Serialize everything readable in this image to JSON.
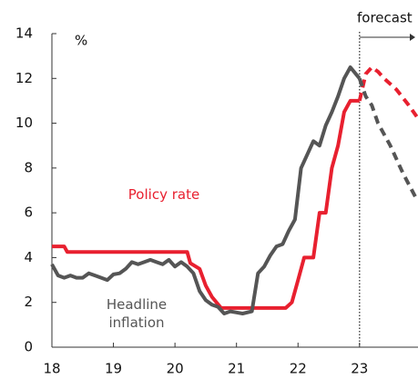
{
  "chart_data": {
    "type": "line",
    "y_label": "%",
    "forecast_label": "forecast",
    "forecast_start": 23,
    "xlim": [
      18,
      23.95
    ],
    "xticks": [
      18,
      19,
      20,
      21,
      22,
      23
    ],
    "ylim": [
      0,
      14
    ],
    "yticks": [
      0,
      2,
      4,
      6,
      8,
      10,
      12,
      14
    ],
    "grid": false,
    "series": [
      {
        "name": "Policy rate",
        "color": "#e8202f",
        "x": [
          18.0,
          18.2,
          18.25,
          20.2,
          20.25,
          20.4,
          20.5,
          20.6,
          20.75,
          21.8,
          21.9,
          22.0,
          22.1,
          22.25,
          22.35,
          22.45,
          22.55,
          22.65,
          22.75,
          22.85,
          23.0,
          23.1,
          23.2,
          23.3,
          23.4,
          23.6,
          23.8,
          23.93
        ],
        "values": [
          4.5,
          4.5,
          4.25,
          4.25,
          3.75,
          3.5,
          2.75,
          2.25,
          1.75,
          1.75,
          2.0,
          3.0,
          4.0,
          4.0,
          6.0,
          6.0,
          8.0,
          9.0,
          10.5,
          11.0,
          11.0,
          12.2,
          12.5,
          12.3,
          12.0,
          11.5,
          10.8,
          10.3
        ]
      },
      {
        "name": "Headline inflation",
        "color": "#555555",
        "x": [
          18.0,
          18.1,
          18.2,
          18.3,
          18.4,
          18.5,
          18.6,
          18.7,
          18.8,
          18.9,
          19.0,
          19.1,
          19.2,
          19.3,
          19.4,
          19.5,
          19.6,
          19.7,
          19.8,
          19.9,
          20.0,
          20.1,
          20.2,
          20.3,
          20.4,
          20.5,
          20.6,
          20.7,
          20.8,
          20.9,
          21.0,
          21.1,
          21.25,
          21.35,
          21.45,
          21.55,
          21.65,
          21.75,
          21.85,
          21.95,
          22.05,
          22.15,
          22.25,
          22.35,
          22.45,
          22.55,
          22.65,
          22.75,
          22.85,
          23.0,
          23.1,
          23.2,
          23.3,
          23.5,
          23.7,
          23.93
        ],
        "values": [
          3.7,
          3.2,
          3.1,
          3.2,
          3.1,
          3.1,
          3.3,
          3.2,
          3.1,
          3.0,
          3.25,
          3.3,
          3.5,
          3.8,
          3.7,
          3.8,
          3.9,
          3.8,
          3.7,
          3.9,
          3.6,
          3.8,
          3.6,
          3.3,
          2.5,
          2.1,
          1.9,
          1.8,
          1.5,
          1.6,
          1.55,
          1.5,
          1.6,
          3.3,
          3.6,
          4.1,
          4.5,
          4.6,
          5.2,
          5.7,
          8.0,
          8.6,
          9.2,
          9.0,
          9.9,
          10.5,
          11.2,
          12.0,
          12.5,
          12.0,
          11.2,
          10.8,
          10.0,
          9.0,
          7.8,
          6.6
        ]
      }
    ]
  }
}
